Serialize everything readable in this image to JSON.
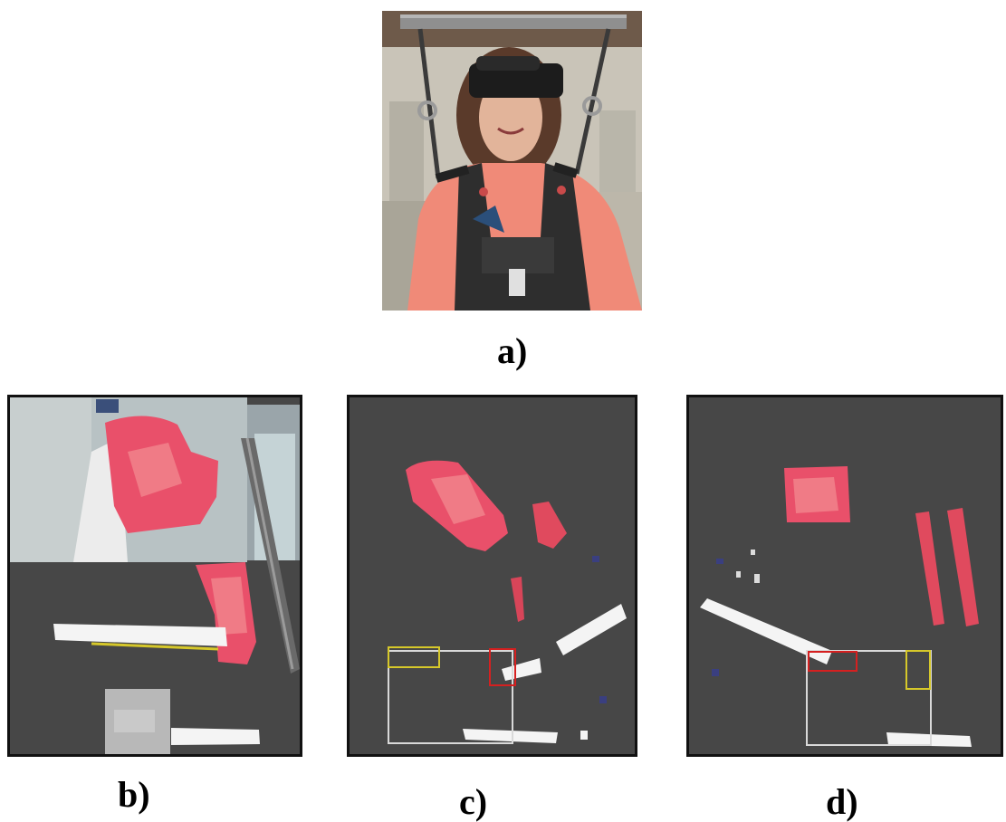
{
  "figure": {
    "labels": {
      "a": "a)",
      "b": "b)",
      "c": "c)",
      "d": "d)"
    }
  },
  "colors": {
    "background": "#ffffff",
    "depth_background": "#474747",
    "body_part_red": "#e9506a",
    "floor_white": "#f4f4f4",
    "roi_white": "#d9d9d9",
    "roi_yellow": "#d6c82a",
    "roi_red": "#d52020"
  }
}
